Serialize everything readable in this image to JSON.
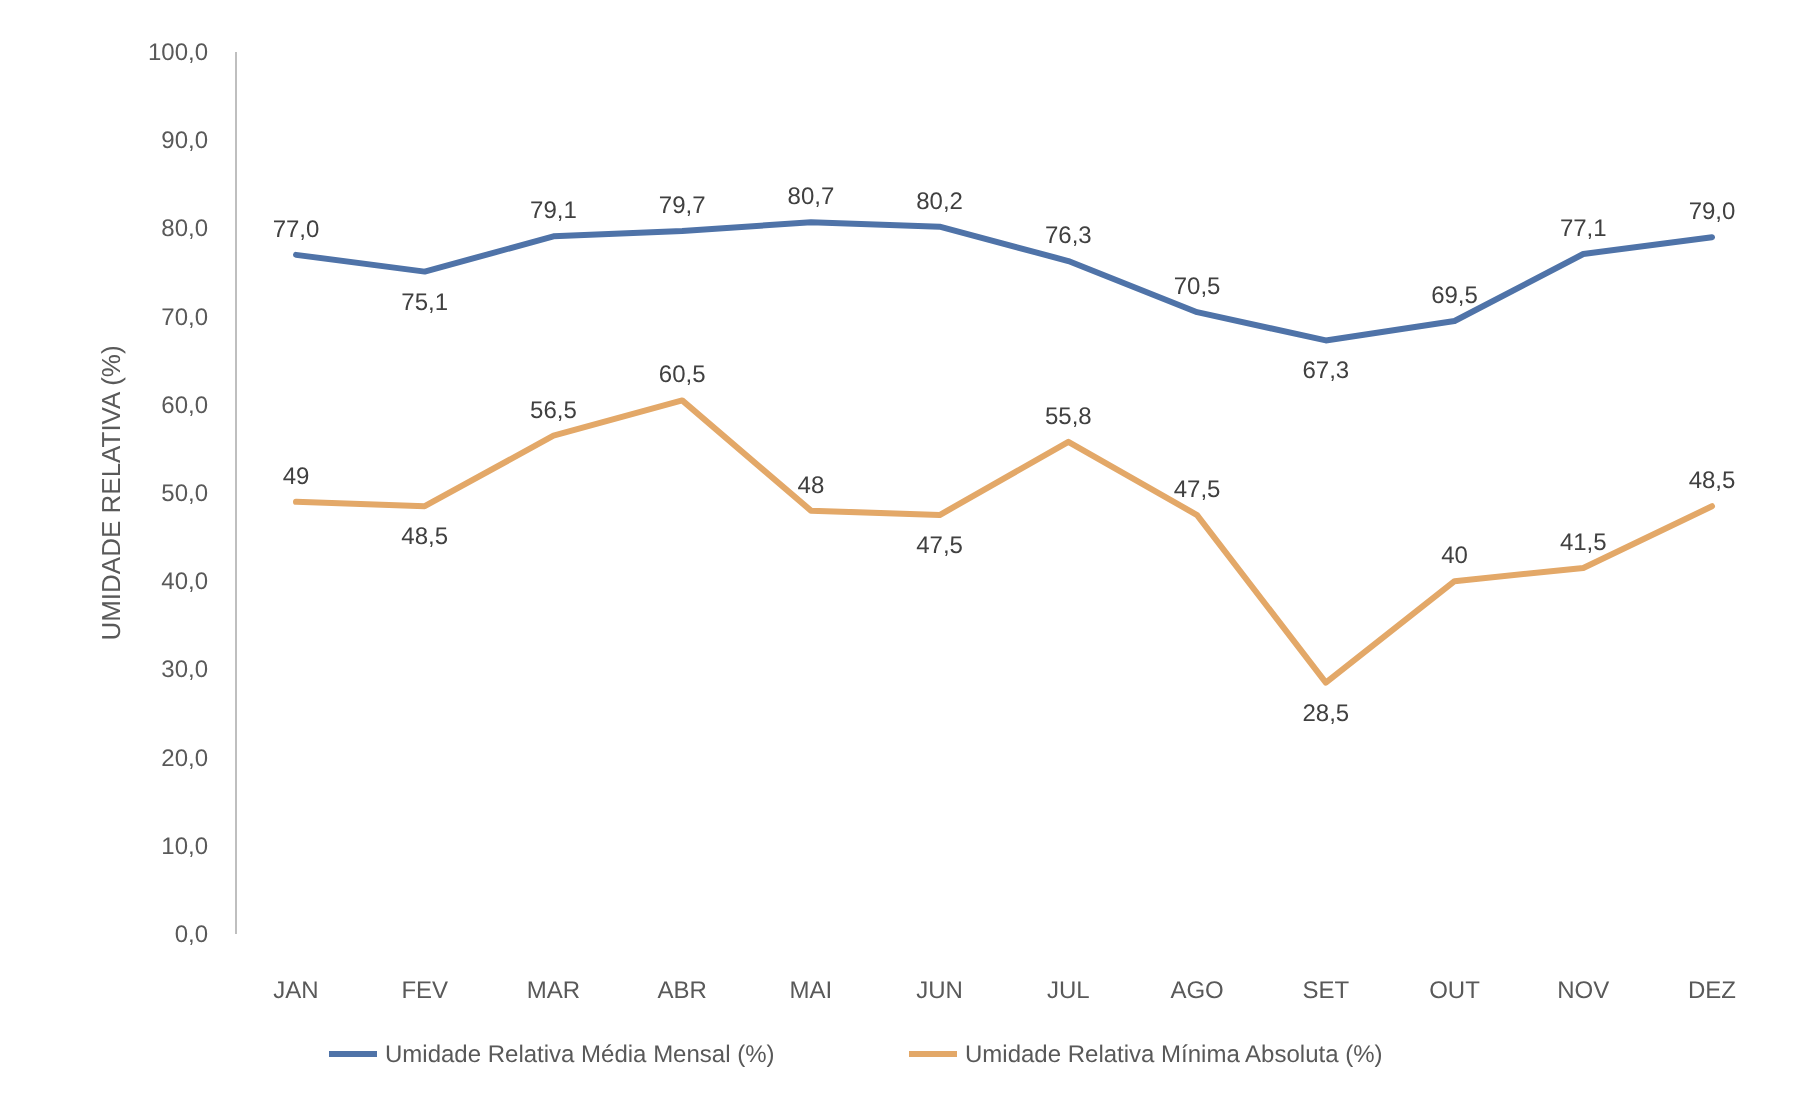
{
  "chart_data": {
    "type": "line",
    "ylabel": "UMIDADE RELATIVA (%)",
    "categories": [
      "JAN",
      "FEV",
      "MAR",
      "ABR",
      "MAI",
      "JUN",
      "JUL",
      "AGO",
      "SET",
      "OUT",
      "NOV",
      "DEZ"
    ],
    "series": [
      {
        "name": "Umidade Relativa Média Mensal (%)",
        "color": "#4f73a8",
        "values": [
          77.0,
          75.1,
          79.1,
          79.7,
          80.7,
          80.2,
          76.3,
          70.5,
          67.3,
          69.5,
          77.1,
          79.0
        ],
        "value_labels": [
          "77,0",
          "75,1",
          "79,1",
          "79,7",
          "80,7",
          "80,2",
          "76,3",
          "70,5",
          "67,3",
          "69,5",
          "77,1",
          "79,0"
        ]
      },
      {
        "name": "Umidade Relativa Mínima Absoluta (%)",
        "color": "#e3a868",
        "values": [
          49,
          48.5,
          56.5,
          60.5,
          48,
          47.5,
          55.8,
          47.5,
          28.5,
          40,
          41.5,
          48.5
        ],
        "value_labels": [
          "49",
          "48,5",
          "56,5",
          "60,5",
          "48",
          "47,5",
          "55,8",
          "47,5",
          "28,5",
          "40",
          "41,5",
          "48,5"
        ]
      }
    ],
    "ylim": [
      0,
      100
    ],
    "yticks": [
      {
        "value": 0,
        "label": "0,0"
      },
      {
        "value": 10,
        "label": "10,0"
      },
      {
        "value": 20,
        "label": "20,0"
      },
      {
        "value": 30,
        "label": "30,0"
      },
      {
        "value": 40,
        "label": "40,0"
      },
      {
        "value": 50,
        "label": "50,0"
      },
      {
        "value": 60,
        "label": "60,0"
      },
      {
        "value": 70,
        "label": "70,0"
      },
      {
        "value": 80,
        "label": "80,0"
      },
      {
        "value": 90,
        "label": "90,0"
      },
      {
        "value": 100,
        "label": "100,0"
      }
    ],
    "legend": "bottom",
    "marker": "none",
    "line_style": "solid"
  }
}
